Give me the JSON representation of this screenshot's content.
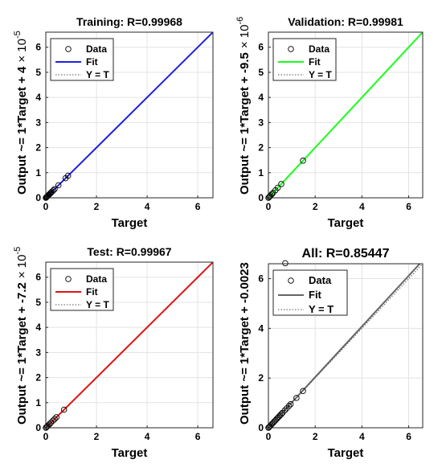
{
  "chart_data": [
    {
      "type": "scatter",
      "title": "Training: R=0.99968",
      "xlabel": "Target",
      "ylabel": "Output ~= 1*Target + 4",
      "ylabel_suffix": "× 10",
      "ylabel_exp": "-5",
      "xticks": [
        "0",
        "2",
        "4",
        "6"
      ],
      "yticks": [
        "0",
        "1",
        "2",
        "3",
        "4",
        "5",
        "6"
      ],
      "xlim": [
        0,
        6.6
      ],
      "ylim": [
        0,
        6.6
      ],
      "grid": true,
      "legend": [
        "Data",
        "Fit",
        "Y = T"
      ],
      "legend_position": "top-left",
      "fit_color": "#1f1fe0",
      "fit": {
        "slope": 1,
        "intercept": 4e-05
      },
      "points": [
        [
          0,
          0
        ],
        [
          0.02,
          0.02
        ],
        [
          0.04,
          0.04
        ],
        [
          0.06,
          0.06
        ],
        [
          0.08,
          0.08
        ],
        [
          0.1,
          0.1
        ],
        [
          0.12,
          0.12
        ],
        [
          0.15,
          0.15
        ],
        [
          0.18,
          0.18
        ],
        [
          0.2,
          0.2
        ],
        [
          0.25,
          0.25
        ],
        [
          0.3,
          0.3
        ],
        [
          0.35,
          0.35
        ],
        [
          0.5,
          0.5
        ],
        [
          0.78,
          0.78
        ],
        [
          0.88,
          0.88
        ]
      ]
    },
    {
      "type": "scatter",
      "title": "Validation: R=0.99981",
      "xlabel": "Target",
      "ylabel": "Output ~= 1*Target + -9.5",
      "ylabel_suffix": "× 10",
      "ylabel_exp": "-6",
      "xticks": [
        "0",
        "2",
        "4",
        "6"
      ],
      "yticks": [
        "0",
        "1",
        "2",
        "3",
        "4",
        "5",
        "6"
      ],
      "xlim": [
        0,
        6.6
      ],
      "ylim": [
        0,
        6.6
      ],
      "grid": true,
      "legend": [
        "Data",
        "Fit",
        "Y = T"
      ],
      "legend_position": "top-left",
      "fit_color": "#19ff19",
      "fit": {
        "slope": 1,
        "intercept": -9.5e-06
      },
      "points": [
        [
          0,
          0
        ],
        [
          0.03,
          0.03
        ],
        [
          0.06,
          0.06
        ],
        [
          0.1,
          0.1
        ],
        [
          0.15,
          0.15
        ],
        [
          0.2,
          0.2
        ],
        [
          0.3,
          0.3
        ],
        [
          0.4,
          0.4
        ],
        [
          0.55,
          0.55
        ],
        [
          1.48,
          1.48
        ]
      ]
    },
    {
      "type": "scatter",
      "title": "Test: R=0.99967",
      "xlabel": "Target",
      "ylabel": "Output ~= 1*Target + -7.2",
      "ylabel_suffix": "× 10",
      "ylabel_exp": "-5",
      "xticks": [
        "0",
        "2",
        "4",
        "6"
      ],
      "yticks": [
        "0",
        "1",
        "2",
        "3",
        "4",
        "5",
        "6"
      ],
      "xlim": [
        0,
        6.6
      ],
      "ylim": [
        0,
        6.6
      ],
      "grid": true,
      "legend": [
        "Data",
        "Fit",
        "Y = T"
      ],
      "legend_position": "top-left",
      "fit_color": "#e01414",
      "fit": {
        "slope": 1,
        "intercept": -7.2e-05
      },
      "points": [
        [
          0,
          0
        ],
        [
          0.03,
          0.03
        ],
        [
          0.06,
          0.06
        ],
        [
          0.1,
          0.1
        ],
        [
          0.15,
          0.15
        ],
        [
          0.2,
          0.2
        ],
        [
          0.28,
          0.28
        ],
        [
          0.35,
          0.35
        ],
        [
          0.42,
          0.42
        ],
        [
          0.72,
          0.72
        ]
      ]
    },
    {
      "type": "scatter",
      "title": "All: R=0.85447",
      "xlabel": "Target",
      "ylabel": "Output ~= 1*Target + -0.0023",
      "ylabel_suffix": "",
      "ylabel_exp": "",
      "xticks": [
        "0",
        "2",
        "4",
        "6"
      ],
      "yticks": [
        "0",
        "2",
        "4",
        "6"
      ],
      "xlim": [
        0,
        6.6
      ],
      "ylim": [
        0,
        6.6
      ],
      "grid": true,
      "legend": [
        "Data",
        "Fit",
        "Y = T"
      ],
      "legend_position": "top-left",
      "fit_color": "#666666",
      "fit": {
        "slope": 1.02,
        "intercept": -0.0023
      },
      "points": [
        [
          0,
          0
        ],
        [
          0.03,
          0.03
        ],
        [
          0.06,
          0.06
        ],
        [
          0.1,
          0.1
        ],
        [
          0.15,
          0.15
        ],
        [
          0.2,
          0.2
        ],
        [
          0.25,
          0.25
        ],
        [
          0.3,
          0.3
        ],
        [
          0.35,
          0.35
        ],
        [
          0.4,
          0.4
        ],
        [
          0.45,
          0.45
        ],
        [
          0.5,
          0.5
        ],
        [
          0.55,
          0.55
        ],
        [
          0.6,
          0.6
        ],
        [
          0.7,
          0.7
        ],
        [
          0.78,
          0.78
        ],
        [
          0.88,
          0.88
        ],
        [
          0.95,
          0.95
        ],
        [
          1.2,
          1.2
        ],
        [
          1.48,
          1.48
        ],
        [
          0.72,
          6.62
        ]
      ]
    }
  ]
}
